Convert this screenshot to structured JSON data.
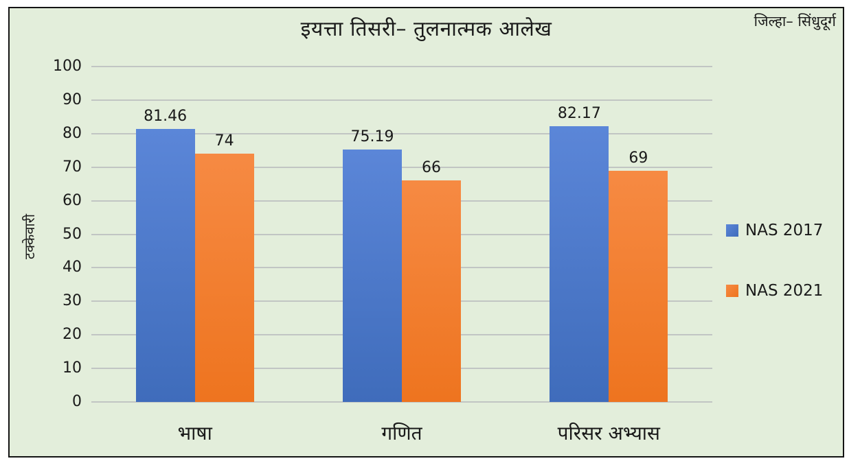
{
  "header": {
    "title": "इयत्ता तिसरी– तुलनात्मक आलेख",
    "district": "जिल्हा– सिंधुदूर्ग"
  },
  "chart_data": {
    "type": "bar",
    "title": "इयत्ता तिसरी– तुलनात्मक आलेख",
    "annotation_top_right": "जिल्हा– सिंधुदूर्ग",
    "categories": [
      "भाषा",
      "गणित",
      "परिसर अभ्यास"
    ],
    "series": [
      {
        "name": "NAS 2017",
        "values": [
          81.46,
          75.19,
          82.17
        ],
        "color": "#4472c4",
        "gradient_top": "#5b86d8",
        "gradient_bottom": "#3f6cbb"
      },
      {
        "name": "NAS 2021",
        "values": [
          74,
          66,
          69
        ],
        "color": "#ed7d31",
        "gradient_top": "#f68a43",
        "gradient_bottom": "#ee741f"
      }
    ],
    "data_labels_shown": true,
    "xlabel": "",
    "ylabel": "टक्केवारी",
    "ylim": [
      0,
      100
    ],
    "ytick_step": 10,
    "grid": true,
    "legend_position": "right",
    "background_color": "#e3eedb",
    "gridline_color": "#c1c5c3",
    "text_color": "#1a1a1a"
  }
}
